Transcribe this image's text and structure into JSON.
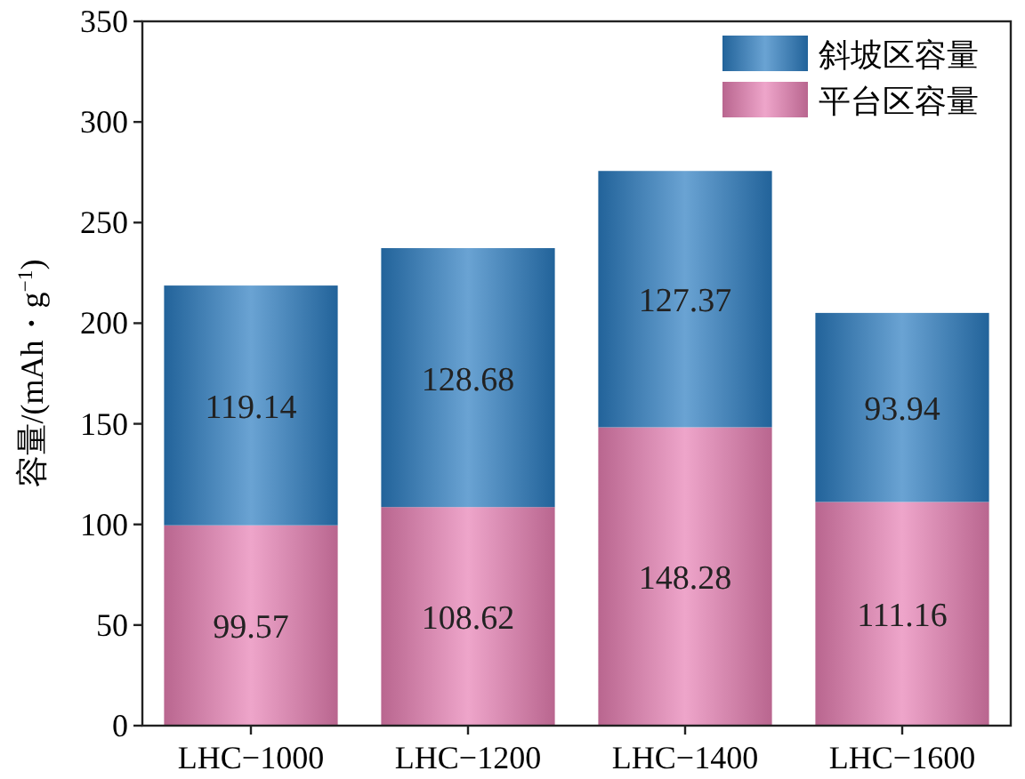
{
  "chart_data": {
    "type": "bar",
    "stacked": true,
    "ylabel": "容量/(mAh・g$^{−1}$)",
    "categories": [
      "LHC−1000",
      "LHC−1200",
      "LHC−1400",
      "LHC−1600"
    ],
    "series": [
      {
        "name": "平台区容量",
        "color": "#e77fb3",
        "values": [
          99.57,
          108.62,
          148.28,
          111.16
        ]
      },
      {
        "name": "斜坡区容量",
        "color": "#2a7cc0",
        "values": [
          119.14,
          128.68,
          127.37,
          93.94
        ]
      }
    ],
    "ylim": [
      0,
      350
    ],
    "yticks": [
      0,
      50,
      100,
      150,
      200,
      250,
      300,
      350
    ],
    "data_labels": true,
    "legend": "top right",
    "grid": false
  }
}
